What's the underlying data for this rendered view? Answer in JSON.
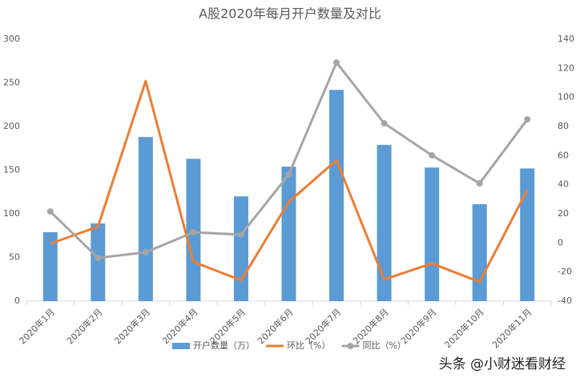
{
  "chart_data": {
    "type": "bar-line",
    "title": "A股2020年每月开户数量及对比",
    "categories": [
      "2020年1月",
      "2020年2月",
      "2020年3月",
      "2020年4月",
      "2020年5月",
      "2020年6月",
      "2020年7月",
      "2020年8月",
      "2020年9月",
      "2020年10月",
      "2020年11月"
    ],
    "series": [
      {
        "name": "开户数量（万）",
        "type": "bar",
        "color": "#5b9bd5",
        "values": [
          79,
          89,
          188,
          163,
          120,
          154,
          242,
          179,
          153,
          111,
          152
        ]
      },
      {
        "name": "环比（%）",
        "type": "line",
        "axis": "y2",
        "color": "#ed7d31",
        "markers": false,
        "values": [
          -0.5,
          11.2,
          111.3,
          -13,
          -25.7,
          28.2,
          56.9,
          -25.1,
          -14.1,
          -26.8,
          36.5
        ]
      },
      {
        "name": "同比（%）",
        "type": "line",
        "axis": "y2",
        "color": "#a5a5a5",
        "markers": true,
        "values": [
          21.6,
          -10.3,
          -6.4,
          7.3,
          5.7,
          47,
          124,
          82.2,
          60.2,
          40.9,
          84.9
        ]
      }
    ],
    "ylim": [
      0,
      300
    ],
    "yticks": [
      0,
      50,
      100,
      150,
      200,
      250,
      300
    ],
    "y2lim": [
      -40,
      140
    ],
    "y2ticks": [
      -40,
      -20,
      0,
      20,
      40,
      60,
      80,
      100,
      120,
      140
    ],
    "grid": false,
    "legend": "bottom"
  },
  "watermark": "头条 @小财迷看财经"
}
